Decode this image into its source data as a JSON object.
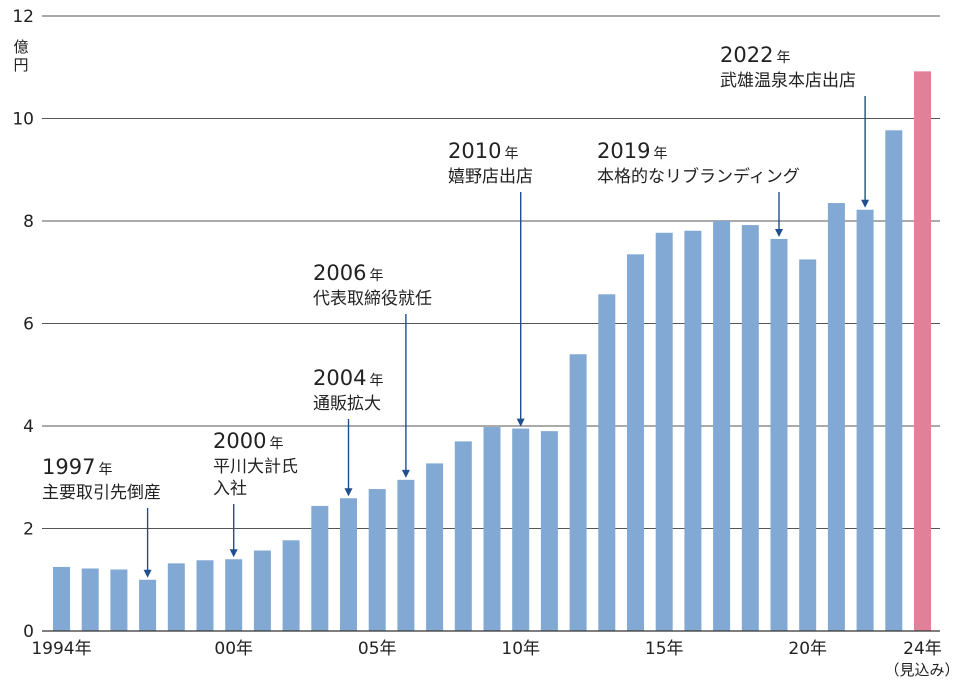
{
  "chart_data": {
    "type": "bar",
    "unit_label": "億円",
    "ylim": [
      0,
      12
    ],
    "yticks": [
      0,
      2,
      4,
      6,
      8,
      10,
      12
    ],
    "grid": true,
    "categories": [
      1994,
      1995,
      1996,
      1997,
      1998,
      1999,
      2000,
      2001,
      2002,
      2003,
      2004,
      2005,
      2006,
      2007,
      2008,
      2009,
      2010,
      2011,
      2012,
      2013,
      2014,
      2015,
      2016,
      2017,
      2018,
      2019,
      2020,
      2021,
      2022,
      2023,
      2024
    ],
    "values": [
      1.25,
      1.22,
      1.2,
      1.0,
      1.32,
      1.38,
      1.4,
      1.57,
      1.77,
      2.44,
      2.59,
      2.77,
      2.95,
      3.27,
      3.7,
      3.98,
      3.95,
      3.9,
      5.4,
      6.57,
      7.35,
      7.77,
      7.81,
      8.0,
      7.92,
      7.65,
      7.25,
      8.35,
      8.22,
      9.77,
      10.92
    ],
    "highlight_index": 30,
    "colors": {
      "bar": "#82a9d3",
      "highlight": "#e08099",
      "grid": "#555555",
      "arrow": "#1f4f8c"
    },
    "xtick_labels": [
      {
        "index": 0,
        "text": "1994年"
      },
      {
        "index": 6,
        "text": "00年"
      },
      {
        "index": 11,
        "text": "05年"
      },
      {
        "index": 16,
        "text": "10年"
      },
      {
        "index": 21,
        "text": "15年"
      },
      {
        "index": 26,
        "text": "20年"
      },
      {
        "index": 30,
        "text": "24年"
      }
    ],
    "xtick_note": "（見込み）",
    "annotations": [
      {
        "index": 3,
        "year": "1997",
        "nen": "年",
        "lines": [
          "主要取引先倒産"
        ]
      },
      {
        "index": 6,
        "year": "2000",
        "nen": "年",
        "lines": [
          "平川大計氏",
          "入社"
        ]
      },
      {
        "index": 10,
        "year": "2004",
        "nen": "年",
        "lines": [
          "通販拡大"
        ]
      },
      {
        "index": 12,
        "year": "2006",
        "nen": "年",
        "lines": [
          "代表取締役就任"
        ]
      },
      {
        "index": 16,
        "year": "2010",
        "nen": "年",
        "lines": [
          "嬉野店出店"
        ]
      },
      {
        "index": 25,
        "year": "2019",
        "nen": "年",
        "lines": [
          "本格的なリブランディング"
        ]
      },
      {
        "index": 28,
        "year": "2022",
        "nen": "年",
        "lines": [
          "武雄温泉本店出店"
        ]
      }
    ]
  }
}
